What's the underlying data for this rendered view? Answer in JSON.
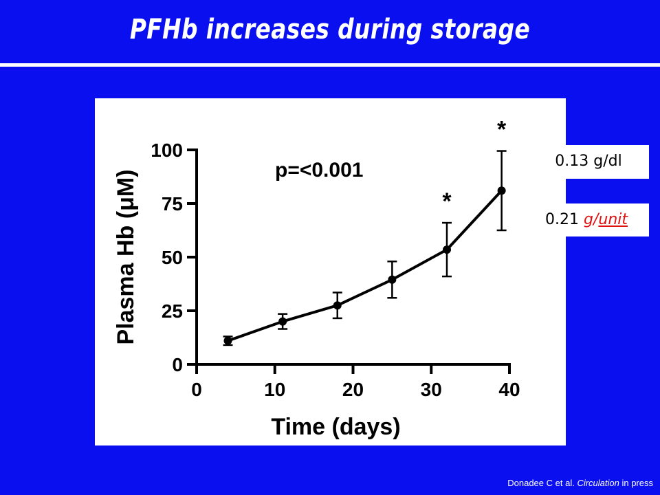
{
  "title": "PFHb increases during storage",
  "callouts": {
    "per_dl": "0.13 g/dl",
    "per_unit_value": "0.21 ",
    "per_unit_g": "g/",
    "per_unit_unit": "unit"
  },
  "citation": {
    "authors": "Donadee C et al. ",
    "journal": "Circulation",
    "status": " in press"
  },
  "colors": {
    "background": "#0a0ff0",
    "callout_red": "#e01010"
  },
  "chart_data": {
    "type": "line",
    "xlabel": "Time (days)",
    "ylabel": "Plasma Hb (μM)",
    "xlim": [
      0,
      40
    ],
    "ylim": [
      0,
      100
    ],
    "xticks": [
      0,
      10,
      20,
      30,
      40
    ],
    "yticks": [
      0,
      25,
      50,
      75,
      100
    ],
    "grid": false,
    "annotation": "p=<0.001",
    "series": [
      {
        "x": [
          4,
          11,
          18,
          25,
          32,
          39
        ],
        "y": [
          11,
          20,
          27.5,
          39.5,
          53.5,
          81
        ],
        "err": [
          2,
          3.5,
          6,
          8.5,
          12.5,
          18.5
        ],
        "significance": [
          "",
          "",
          "",
          "",
          "*",
          "*"
        ]
      }
    ]
  }
}
